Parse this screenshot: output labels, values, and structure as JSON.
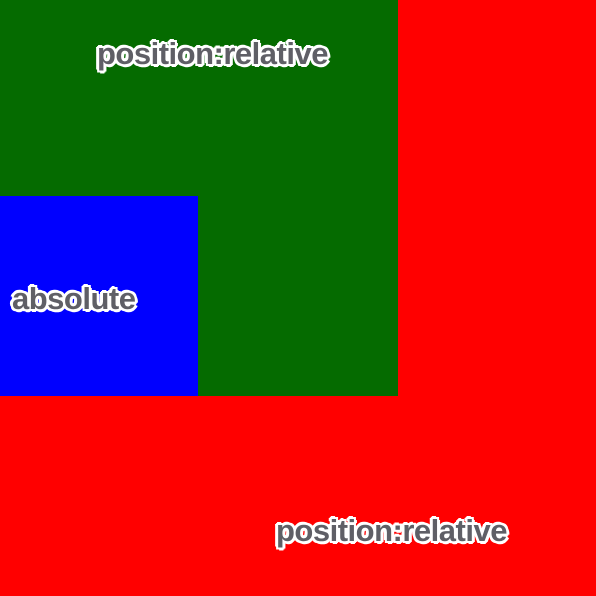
{
  "outer_box": {
    "label": "position:relative",
    "background": "#ff0000"
  },
  "inner_box": {
    "label": "position:relative",
    "background": "#056b00"
  },
  "absolute_box": {
    "label": "absolute",
    "background": "#0000ff"
  },
  "label_color": "#5f5f66",
  "label_outline_color": "#ffffff"
}
